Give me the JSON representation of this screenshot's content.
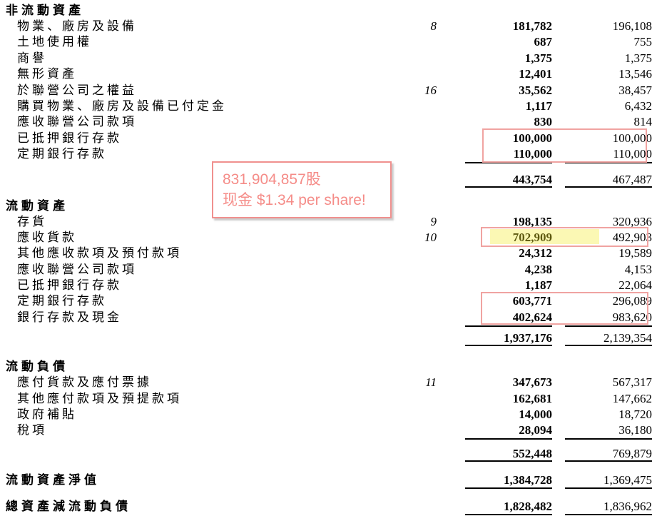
{
  "document": {
    "kind": "balance-sheet-excerpt",
    "language": "zh-Hant"
  },
  "colors": {
    "pink_box_border": "#f0a3a1",
    "annotation_border": "#f0908e",
    "annotation_text": "#f58c88",
    "highlight_fill": "#fbf8b4",
    "highlight_text": "#5e590f",
    "rule_color": "#000000",
    "text_color": "#000000"
  },
  "annotation": {
    "line1": "831,904,857股",
    "line2": "现金 $1.34 per share!"
  },
  "rows": [
    {
      "type": "header",
      "label": "非流動資產"
    },
    {
      "type": "item",
      "label": "物業、廠房及設備",
      "note": "8",
      "v1": "181,782",
      "v2": "196,108"
    },
    {
      "type": "item",
      "label": "土地使用權",
      "note": "",
      "v1": "687",
      "v2": "755"
    },
    {
      "type": "item",
      "label": "商譽",
      "note": "",
      "v1": "1,375",
      "v2": "1,375"
    },
    {
      "type": "item",
      "label": "無形資產",
      "note": "",
      "v1": "12,401",
      "v2": "13,546"
    },
    {
      "type": "item",
      "label": "於聯營公司之權益",
      "note": "16",
      "v1": "35,562",
      "v2": "38,457"
    },
    {
      "type": "item",
      "label": "購買物業、廠房及設備已付定金",
      "note": "",
      "v1": "1,117",
      "v2": "6,432"
    },
    {
      "type": "item",
      "label": "應收聯營公司款項",
      "note": "",
      "v1": "830",
      "v2": "814"
    },
    {
      "type": "item",
      "label": "已抵押銀行存款",
      "note": "",
      "v1": "100,000",
      "v2": "100,000"
    },
    {
      "type": "item",
      "label": "定期銀行存款",
      "note": "",
      "v1": "110,000",
      "v2": "110,000",
      "rule": true
    },
    {
      "type": "spacer",
      "h": 14
    },
    {
      "type": "subtotal",
      "label": "",
      "note": "",
      "v1": "443,754",
      "v2": "467,487",
      "rule": true
    },
    {
      "type": "spacer",
      "h": 15
    },
    {
      "type": "header",
      "label": "流動資產"
    },
    {
      "type": "item",
      "label": "存貨",
      "note": "9",
      "v1": "198,135",
      "v2": "320,936"
    },
    {
      "type": "item",
      "label": "應收貨款",
      "note": "10",
      "v1": "702,909",
      "v2": "492,903",
      "highlight_v1": true
    },
    {
      "type": "item",
      "label": "其他應收款項及預付款項",
      "note": "",
      "v1": "24,312",
      "v2": "19,589"
    },
    {
      "type": "item",
      "label": "應收聯營公司款項",
      "note": "",
      "v1": "4,238",
      "v2": "4,153"
    },
    {
      "type": "item",
      "label": "已抵押銀行存款",
      "note": "",
      "v1": "1,187",
      "v2": "22,064"
    },
    {
      "type": "item",
      "label": "定期銀行存款",
      "note": "",
      "v1": "603,771",
      "v2": "296,089"
    },
    {
      "type": "item",
      "label": "銀行存款及現金",
      "note": "",
      "v1": "402,624",
      "v2": "983,620",
      "rule": true
    },
    {
      "type": "spacer",
      "h": 8
    },
    {
      "type": "subtotal",
      "label": "",
      "note": "",
      "v1": "1,937,176",
      "v2": "2,139,354",
      "rule": true
    },
    {
      "type": "spacer",
      "h": 18
    },
    {
      "type": "header",
      "label": "流動負債"
    },
    {
      "type": "item",
      "label": "應付貨款及應付票據",
      "note": "11",
      "v1": "347,673",
      "v2": "567,317"
    },
    {
      "type": "item",
      "label": "其他應付款項及預提款項",
      "note": "",
      "v1": "162,681",
      "v2": "147,662"
    },
    {
      "type": "item",
      "label": "政府補貼",
      "note": "",
      "v1": "14,000",
      "v2": "18,720"
    },
    {
      "type": "item",
      "label": "稅項",
      "note": "",
      "v1": "28,094",
      "v2": "36,180",
      "rule": true
    },
    {
      "type": "spacer",
      "h": 11
    },
    {
      "type": "subtotal",
      "label": "",
      "note": "",
      "v1": "552,448",
      "v2": "769,879",
      "rule": true
    },
    {
      "type": "spacer",
      "h": 16
    },
    {
      "type": "totalrow",
      "label": "流動資產淨值",
      "note": "",
      "v1": "1,384,728",
      "v2": "1,369,475",
      "rule": true
    },
    {
      "type": "spacer",
      "h": 15
    },
    {
      "type": "totalrow",
      "label": "總資產減流動負債",
      "note": "",
      "v1": "1,828,482",
      "v2": "1,836,962",
      "rule": true
    }
  ]
}
